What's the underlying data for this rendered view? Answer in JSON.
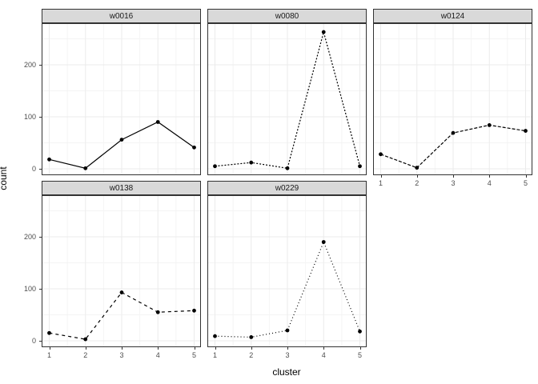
{
  "chart_data": {
    "type": "line",
    "title": "",
    "xlabel": "cluster",
    "ylabel": "count",
    "x": [
      1,
      2,
      3,
      4,
      5
    ],
    "x_tick_labels": [
      "1",
      "2",
      "3",
      "4",
      "5"
    ],
    "y_tick_labels": [
      "0",
      "100",
      "200"
    ],
    "y_ticks": [
      0,
      100,
      200
    ],
    "y_minor_ticks": [
      50,
      150,
      250
    ],
    "ylim": [
      -12,
      280
    ],
    "grid": true,
    "legend_position": "none",
    "facet_layout": {
      "ncol": 3,
      "nrow": 2
    },
    "facets": [
      {
        "label": "w0016",
        "values": [
          18,
          1,
          56,
          90,
          41
        ],
        "linetype": "solid"
      },
      {
        "label": "w0080",
        "values": [
          5,
          12,
          1,
          263,
          5
        ],
        "linetype": "dashed-short"
      },
      {
        "label": "w0124",
        "values": [
          28,
          2,
          69,
          84,
          73
        ],
        "linetype": "dashed-long"
      },
      {
        "label": "w0138",
        "values": [
          15,
          3,
          93,
          55,
          58
        ],
        "linetype": "dashed-medium"
      },
      {
        "label": "w0229",
        "values": [
          9,
          7,
          20,
          190,
          18
        ],
        "linetype": "dotted"
      }
    ]
  },
  "colors": {
    "strip_fill": "#d9d9d9",
    "strip_border": "#333333",
    "panel_border": "#333333",
    "grid_major": "#ebebeb",
    "grid_minor": "#f4f4f4",
    "line": "#000000",
    "point": "#000000",
    "tick": "#333333",
    "tick_label": "#4d4d4d",
    "axis_title": "#000000",
    "background": "#ffffff"
  }
}
